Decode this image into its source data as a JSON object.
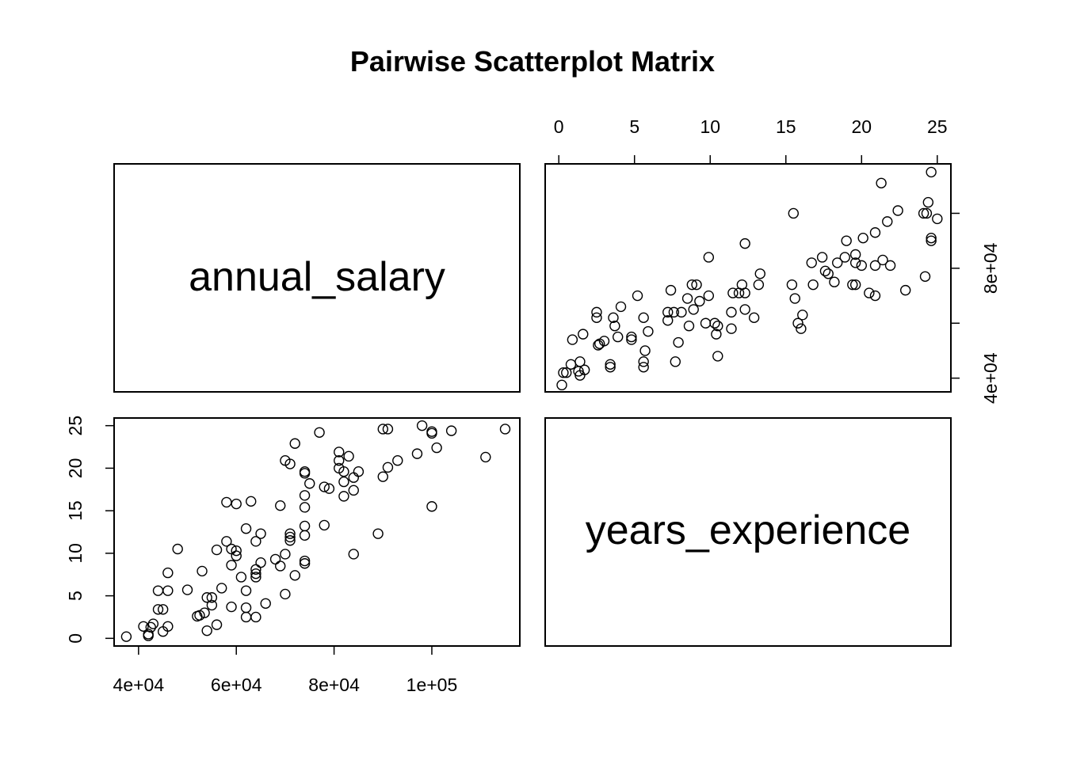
{
  "chart_data": {
    "type": "scatter",
    "title": "Pairwise Scatterplot Matrix",
    "variables": [
      "annual_salary",
      "years_experience"
    ],
    "axes": {
      "annual_salary": {
        "range": [
          35000,
          118000
        ],
        "ticks": [
          40000,
          60000,
          80000,
          100000
        ],
        "tick_labels_bottom": [
          "4e+04",
          "6e+04",
          "8e+04",
          "1e+05"
        ],
        "tick_labels_right": [
          "4e+04",
          "",
          "8e+04",
          ""
        ],
        "right_ticks": [
          40000,
          60000,
          80000,
          100000
        ]
      },
      "years_experience": {
        "range": [
          -0.9,
          25.9
        ],
        "ticks": [
          0,
          5,
          10,
          15,
          20,
          25
        ],
        "tick_labels": [
          "0",
          "5",
          "10",
          "15",
          "20",
          "25"
        ]
      }
    },
    "grid": false,
    "legend": "none",
    "points": [
      [
        37500,
        0.2
      ],
      [
        41000,
        1.4
      ],
      [
        42000,
        0.3
      ],
      [
        42000,
        0.5
      ],
      [
        42500,
        1.3
      ],
      [
        43000,
        1.7
      ],
      [
        44000,
        3.4
      ],
      [
        44000,
        5.6
      ],
      [
        45000,
        3.4
      ],
      [
        45000,
        0.8
      ],
      [
        46000,
        7.7
      ],
      [
        46000,
        5.6
      ],
      [
        46000,
        1.4
      ],
      [
        48000,
        10.5
      ],
      [
        50000,
        5.7
      ],
      [
        52000,
        2.6
      ],
      [
        52500,
        2.7
      ],
      [
        53000,
        7.9
      ],
      [
        53500,
        3.0
      ],
      [
        54000,
        4.8
      ],
      [
        54000,
        0.9
      ],
      [
        55000,
        3.9
      ],
      [
        55000,
        4.8
      ],
      [
        56000,
        10.4
      ],
      [
        56000,
        1.6
      ],
      [
        57000,
        5.9
      ],
      [
        58000,
        16.0
      ],
      [
        58000,
        11.4
      ],
      [
        59000,
        10.5
      ],
      [
        59000,
        8.6
      ],
      [
        59000,
        3.7
      ],
      [
        60000,
        15.8
      ],
      [
        60000,
        9.7
      ],
      [
        60000,
        10.3
      ],
      [
        61000,
        7.2
      ],
      [
        62000,
        12.9
      ],
      [
        62000,
        5.6
      ],
      [
        62000,
        3.6
      ],
      [
        62000,
        2.5
      ],
      [
        63000,
        16.1
      ],
      [
        64000,
        11.4
      ],
      [
        64000,
        8.1
      ],
      [
        64000,
        7.6
      ],
      [
        64000,
        7.2
      ],
      [
        64000,
        2.5
      ],
      [
        65000,
        12.3
      ],
      [
        65000,
        8.9
      ],
      [
        66000,
        4.1
      ],
      [
        68000,
        9.3
      ],
      [
        69000,
        15.6
      ],
      [
        69000,
        8.5
      ],
      [
        70000,
        20.9
      ],
      [
        70000,
        9.9
      ],
      [
        70000,
        5.2
      ],
      [
        71000,
        20.5
      ],
      [
        71000,
        12.3
      ],
      [
        71000,
        11.9
      ],
      [
        71000,
        11.5
      ],
      [
        72000,
        22.9
      ],
      [
        72000,
        7.4
      ],
      [
        74000,
        19.6
      ],
      [
        74000,
        19.4
      ],
      [
        74000,
        16.8
      ],
      [
        74000,
        15.4
      ],
      [
        74000,
        13.2
      ],
      [
        74000,
        12.1
      ],
      [
        74000,
        9.1
      ],
      [
        74000,
        8.8
      ],
      [
        75000,
        18.2
      ],
      [
        77000,
        24.2
      ],
      [
        78000,
        17.8
      ],
      [
        78000,
        13.3
      ],
      [
        79000,
        17.6
      ],
      [
        81000,
        21.9
      ],
      [
        81000,
        20.9
      ],
      [
        81000,
        20.0
      ],
      [
        82000,
        19.6
      ],
      [
        82000,
        18.4
      ],
      [
        82000,
        16.7
      ],
      [
        83000,
        21.4
      ],
      [
        84000,
        18.9
      ],
      [
        84000,
        17.4
      ],
      [
        84000,
        9.9
      ],
      [
        85000,
        19.6
      ],
      [
        89000,
        12.3
      ],
      [
        90000,
        24.6
      ],
      [
        90000,
        19.0
      ],
      [
        91000,
        24.6
      ],
      [
        91000,
        20.1
      ],
      [
        93000,
        20.9
      ],
      [
        97000,
        21.7
      ],
      [
        98000,
        25.0
      ],
      [
        100000,
        24.3
      ],
      [
        100000,
        24.1
      ],
      [
        100000,
        15.5
      ],
      [
        101000,
        22.4
      ],
      [
        104000,
        24.4
      ],
      [
        111000,
        21.3
      ],
      [
        115000,
        24.6
      ]
    ]
  }
}
